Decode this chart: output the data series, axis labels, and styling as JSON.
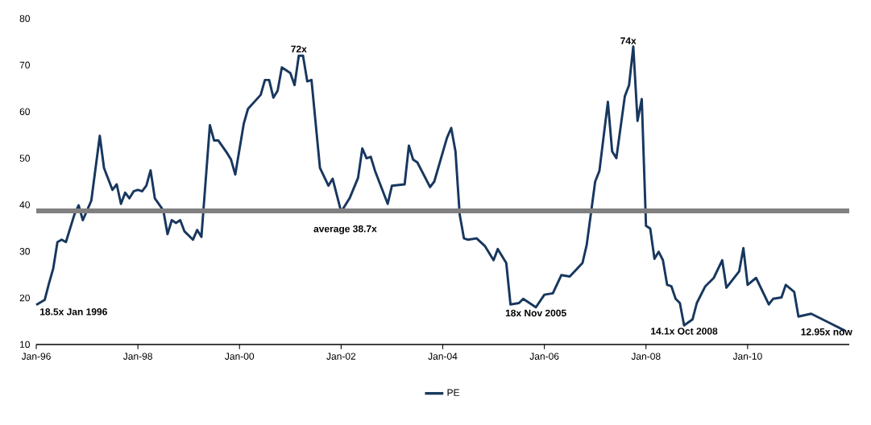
{
  "chart_data": {
    "type": "line",
    "x": [
      "1996-01",
      "1996-03",
      "1996-04",
      "1996-05",
      "1996-06",
      "1996-07",
      "1996-08",
      "1996-10",
      "1996-11",
      "1996-12",
      "1997-02",
      "1997-04",
      "1997-05",
      "1997-07",
      "1997-08",
      "1997-09",
      "1997-10",
      "1997-11",
      "1997-12",
      "1998-01",
      "1998-02",
      "1998-03",
      "1998-04",
      "1998-05",
      "1998-07",
      "1998-08",
      "1998-09",
      "1998-10",
      "1998-11",
      "1998-12",
      "1999-02",
      "1999-03",
      "1999-04",
      "1999-06",
      "1999-07",
      "1999-08",
      "1999-10",
      "1999-11",
      "1999-12",
      "2000-02",
      "2000-03",
      "2000-06",
      "2000-07",
      "2000-08",
      "2000-09",
      "2000-10",
      "2000-11",
      "2001-01",
      "2001-02",
      "2001-03",
      "2001-04",
      "2001-05",
      "2001-06",
      "2001-08",
      "2001-10",
      "2001-11",
      "2002-01",
      "2002-03",
      "2002-05",
      "2002-06",
      "2002-07",
      "2002-08",
      "2002-09",
      "2002-12",
      "2003-01",
      "2003-04",
      "2003-05",
      "2003-06",
      "2003-07",
      "2003-10",
      "2003-11",
      "2004-02",
      "2004-03",
      "2004-04",
      "2004-05",
      "2004-06",
      "2004-07",
      "2004-09",
      "2004-11",
      "2005-01",
      "2005-02",
      "2005-04",
      "2005-05",
      "2005-07",
      "2005-08",
      "2005-11",
      "2006-01",
      "2006-03",
      "2006-05",
      "2006-07",
      "2006-10",
      "2006-11",
      "2007-01",
      "2007-02",
      "2007-04",
      "2007-05",
      "2007-06",
      "2007-08",
      "2007-09",
      "2007-10",
      "2007-11",
      "2007-12",
      "2008-01",
      "2008-02",
      "2008-03",
      "2008-04",
      "2008-05",
      "2008-06",
      "2008-07",
      "2008-08",
      "2008-09",
      "2008-10",
      "2008-12",
      "2009-01",
      "2009-03",
      "2009-05",
      "2009-07",
      "2009-08",
      "2009-11",
      "2009-12",
      "2010-01",
      "2010-03",
      "2010-06",
      "2010-07",
      "2010-09",
      "2010-10",
      "2010-12",
      "2011-01",
      "2011-04",
      "2011-06",
      "2011-08",
      "2011-12"
    ],
    "series": [
      {
        "name": "PE",
        "color": "#17375e",
        "values": [
          18.5,
          19.6,
          23.1,
          26.3,
          32,
          32.5,
          32,
          37.9,
          39.9,
          36.7,
          40.9,
          54.8,
          47.9,
          43.2,
          44.4,
          40.2,
          42.6,
          41.4,
          42.9,
          43.2,
          42.9,
          44.1,
          47.4,
          41.4,
          38.8,
          33.7,
          36.7,
          36.1,
          36.7,
          34.3,
          32.5,
          34.6,
          33.1,
          57.1,
          53.8,
          53.8,
          51.2,
          49.7,
          46.5,
          57.4,
          60.6,
          63.6,
          66.8,
          66.8,
          63.0,
          64.5,
          69.5,
          68.3,
          65.7,
          72,
          72,
          66.5,
          66.8,
          47.9,
          44.1,
          45.6,
          38.5,
          41.4,
          45.8,
          52.1,
          50,
          50.3,
          47.3,
          40.2,
          44.1,
          44.4,
          52.7,
          49.7,
          49.1,
          43.8,
          45,
          54.4,
          56.5,
          51.5,
          37.9,
          32.8,
          32.5,
          32.8,
          31.1,
          28.1,
          30.5,
          27.5,
          18.6,
          18.9,
          19.8,
          18,
          20.7,
          21.0,
          24.9,
          24.6,
          27.5,
          31.4,
          45,
          47.3,
          62.1,
          51.5,
          50,
          63.3,
          65.7,
          74,
          58,
          62.7,
          35.5,
          34.9,
          28.4,
          29.9,
          28.1,
          22.8,
          22.5,
          19.8,
          18.9,
          14.1,
          15.4,
          18.9,
          22.5,
          24.3,
          28.1,
          22.2,
          25.7,
          30.7,
          22.8,
          24.3,
          18.6,
          19.8,
          20.1,
          22.8,
          21.3,
          16.0,
          16.6,
          15.7,
          14.8,
          12.95
        ]
      }
    ],
    "xlim": [
      "1996-01",
      "2012-01"
    ],
    "xticks": [
      {
        "value": "1996-01",
        "label": "Jan-96"
      },
      {
        "value": "1998-01",
        "label": "Jan-98"
      },
      {
        "value": "2000-01",
        "label": "Jan-00"
      },
      {
        "value": "2002-01",
        "label": "Jan-02"
      },
      {
        "value": "2004-01",
        "label": "Jan-04"
      },
      {
        "value": "2006-01",
        "label": "Jan-06"
      },
      {
        "value": "2008-01",
        "label": "Jan-08"
      },
      {
        "value": "2010-01",
        "label": "Jan-10"
      }
    ],
    "ylim": [
      10,
      80
    ],
    "yticks": [
      10,
      20,
      30,
      40,
      50,
      60,
      70,
      80
    ],
    "ref_lines": [
      {
        "axis": "y",
        "value": 38.7,
        "label": "average 38.7x",
        "color": "#808080"
      }
    ],
    "annotations": [
      {
        "text": "18.5x Jan 1996",
        "x": "1996-01",
        "y": 18.5
      },
      {
        "text": "72x",
        "x": "2001-03",
        "y": 72
      },
      {
        "text": "18x Nov 2005",
        "x": "2005-11",
        "y": 18
      },
      {
        "text": "74x",
        "x": "2007-10",
        "y": 74
      },
      {
        "text": "14.1x Oct 2008",
        "x": "2008-10",
        "y": 14.1
      },
      {
        "text": "12.95x now",
        "x": "2011-12",
        "y": 12.95
      }
    ],
    "grid": false,
    "legend": "bottom",
    "marker": "none",
    "line_style": "solid"
  }
}
